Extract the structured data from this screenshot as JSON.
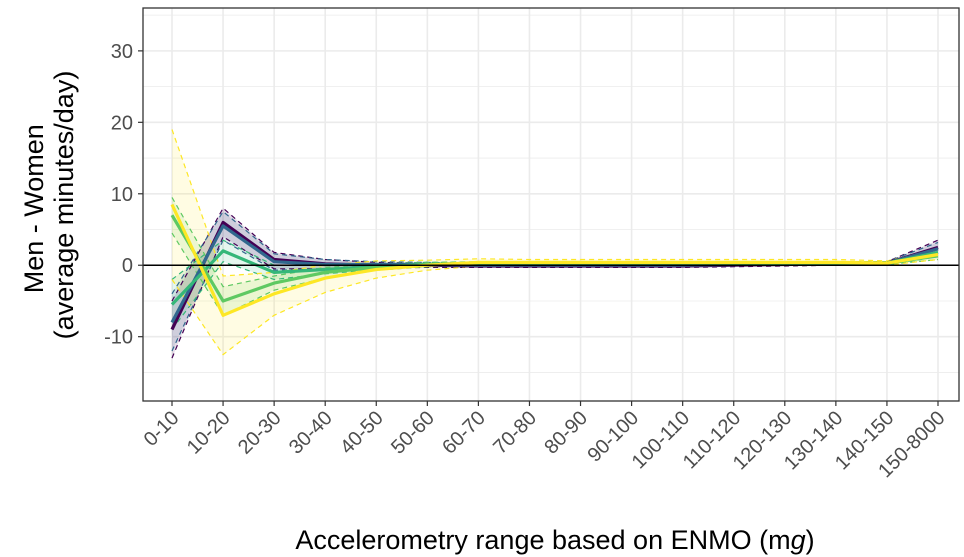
{
  "chart_data": {
    "type": "line",
    "xlabel": "Accelerometry range based on ENMO (mg)",
    "xlabel_parts": {
      "prefix": "Accelerometry range based on ENMO (m",
      "italic": "g",
      "suffix": ")"
    },
    "ylabel_lines": [
      "Men - Women",
      "(average minutes/day)"
    ],
    "ylim": [
      -19,
      36
    ],
    "yticks": [
      -10,
      0,
      10,
      20,
      30
    ],
    "grid": true,
    "reference_line": 0,
    "categories": [
      "0-10",
      "10-20",
      "20-30",
      "30-40",
      "40-50",
      "50-60",
      "60-70",
      "70-80",
      "80-90",
      "90-100",
      "100-110",
      "110-120",
      "120-130",
      "130-140",
      "140-150",
      "150-8000"
    ],
    "series": [
      {
        "color": "#440154",
        "values": [
          -9.0,
          6.0,
          0.8,
          0.2,
          0.0,
          0.0,
          -0.1,
          -0.1,
          -0.1,
          -0.1,
          -0.1,
          0.0,
          0.1,
          0.2,
          0.3,
          2.5
        ],
        "lower": [
          -13.0,
          4.0,
          -0.5,
          -0.5,
          -0.4,
          -0.3,
          -0.3,
          -0.3,
          -0.3,
          -0.3,
          -0.3,
          -0.2,
          -0.1,
          0.0,
          0.1,
          1.5
        ],
        "upper": [
          -5.0,
          8.0,
          1.8,
          0.8,
          0.4,
          0.3,
          0.2,
          0.1,
          0.1,
          0.1,
          0.1,
          0.2,
          0.3,
          0.4,
          0.5,
          3.5
        ]
      },
      {
        "color": "#31688e",
        "values": [
          -8.0,
          5.5,
          0.5,
          0.1,
          0.1,
          0.1,
          0.0,
          0.0,
          0.0,
          0.0,
          0.0,
          0.1,
          0.2,
          0.2,
          0.3,
          2.3
        ],
        "lower": [
          -12.0,
          3.5,
          -0.7,
          -0.6,
          -0.3,
          -0.2,
          -0.2,
          -0.2,
          -0.2,
          -0.2,
          -0.2,
          -0.1,
          0.0,
          0.0,
          0.1,
          1.4
        ],
        "upper": [
          -4.0,
          7.5,
          1.6,
          0.8,
          0.5,
          0.4,
          0.2,
          0.2,
          0.2,
          0.2,
          0.2,
          0.3,
          0.4,
          0.4,
          0.5,
          3.2
        ]
      },
      {
        "color": "#35b779",
        "values": [
          -5.5,
          2.0,
          -1.0,
          -0.6,
          -0.2,
          0.1,
          0.2,
          0.2,
          0.2,
          0.2,
          0.2,
          0.2,
          0.3,
          0.3,
          0.3,
          1.8
        ],
        "lower": [
          -9.0,
          0.5,
          -2.0,
          -1.2,
          -0.6,
          -0.2,
          0.0,
          0.0,
          0.0,
          0.0,
          0.0,
          0.0,
          0.1,
          0.1,
          0.1,
          1.2
        ],
        "upper": [
          -2.0,
          3.5,
          0.0,
          0.0,
          0.2,
          0.4,
          0.4,
          0.4,
          0.4,
          0.4,
          0.4,
          0.4,
          0.5,
          0.5,
          0.5,
          2.4
        ]
      },
      {
        "color": "#5ec962",
        "values": [
          7.0,
          -5.0,
          -2.5,
          -1.0,
          -0.3,
          0.1,
          0.3,
          0.3,
          0.3,
          0.3,
          0.3,
          0.3,
          0.3,
          0.3,
          0.3,
          1.3
        ],
        "lower": [
          4.5,
          -7.0,
          -3.5,
          -1.8,
          -0.7,
          -0.2,
          0.1,
          0.1,
          0.1,
          0.1,
          0.1,
          0.1,
          0.1,
          0.1,
          0.1,
          0.8
        ],
        "upper": [
          9.5,
          -3.0,
          -1.5,
          -0.3,
          0.1,
          0.4,
          0.5,
          0.5,
          0.5,
          0.5,
          0.5,
          0.5,
          0.5,
          0.5,
          0.5,
          1.8
        ]
      },
      {
        "color": "#fde725",
        "values": [
          8.5,
          -7.0,
          -4.0,
          -1.8,
          -0.6,
          0.0,
          0.4,
          0.4,
          0.4,
          0.4,
          0.4,
          0.4,
          0.4,
          0.4,
          0.3,
          1.5
        ],
        "lower": [
          -2.0,
          -12.5,
          -7.0,
          -3.8,
          -1.8,
          -0.7,
          -0.1,
          0.0,
          0.0,
          0.0,
          0.0,
          0.0,
          0.0,
          0.0,
          0.0,
          0.8
        ],
        "upper": [
          19.0,
          -1.5,
          -1.0,
          0.0,
          0.6,
          0.7,
          0.9,
          0.8,
          0.8,
          0.8,
          0.8,
          0.8,
          0.8,
          0.8,
          0.6,
          2.2
        ]
      }
    ]
  }
}
